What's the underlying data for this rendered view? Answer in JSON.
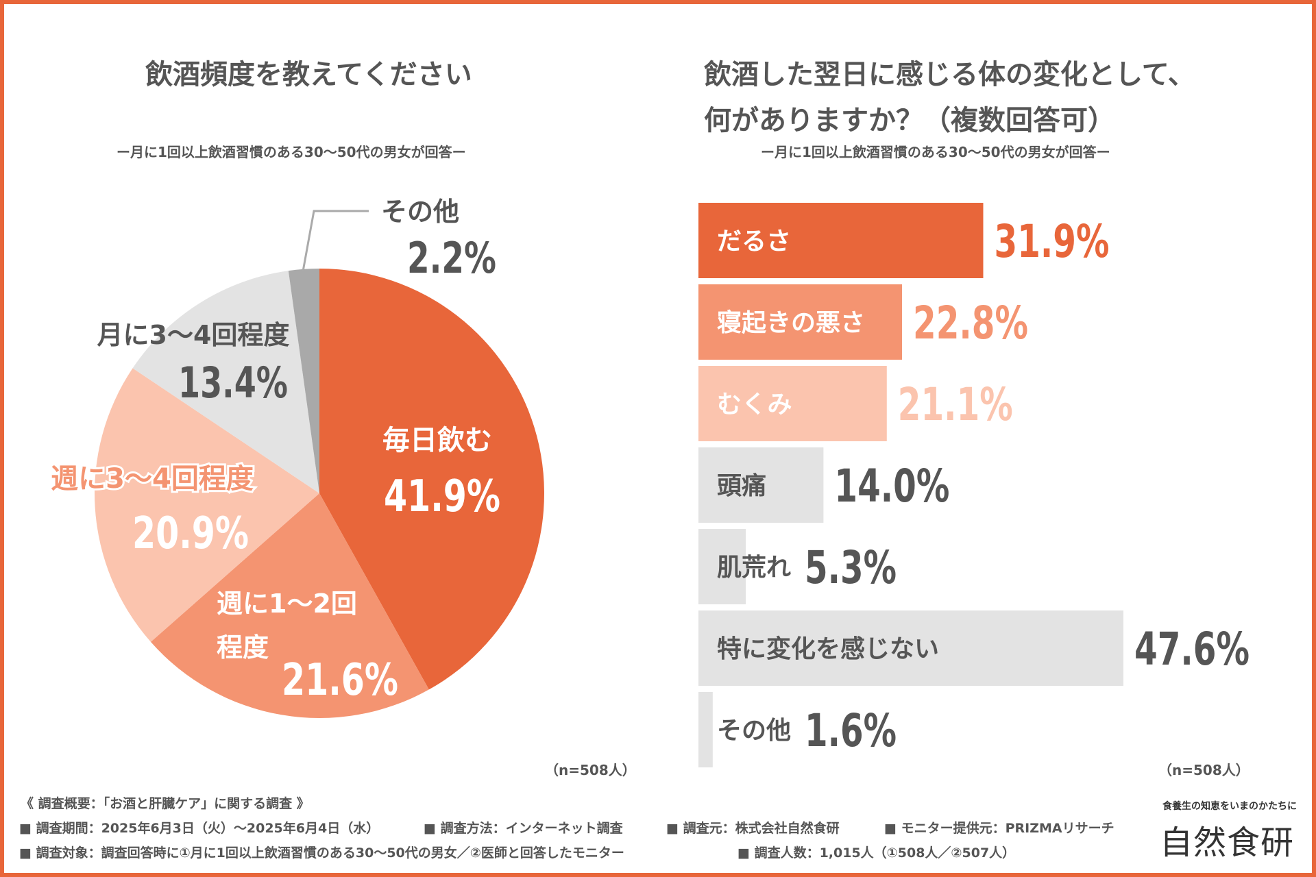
{
  "pie": {
    "title": "飲酒頻度を教えてください",
    "subtitle": "ー月に1回以上飲酒習慣のある30〜50代の男女が回答ー",
    "n_note": "（n=508人）"
  },
  "bar": {
    "title_line1": "飲酒した翌日に感じる体の変化として、",
    "title_line2": "何がありますか？（複数回答可）",
    "subtitle": "ー月に1回以上飲酒習慣のある30〜50代の男女が回答ー",
    "n_note": "（n=508人）"
  },
  "footer": {
    "overview": "《 調査概要：「お酒と肝臓ケア」に関する調査 》",
    "period": "■ 調査期間：2025年6月3日（火）〜2025年6月4日（水）",
    "method": "■ 調査方法：インターネット調査",
    "source": "■ 調査元：株式会社自然食研",
    "monitor": "■ モニター提供元：PRIZMAリサーチ",
    "target": "■ 調査対象：調査回答時に①月に1回以上飲酒習慣のある30〜50代の男女／②医師と回答したモニター",
    "count": "■ 調査人数：1,015人（①508人／②507人）"
  },
  "brand": {
    "tagline": "食養生の知恵をいまのかたちに",
    "name": "自然食研"
  },
  "chart_data": [
    {
      "type": "pie",
      "title": "飲酒頻度を教えてください",
      "slices": [
        {
          "label": "毎日飲む",
          "value": 41.9,
          "text": "41.9%",
          "color": "#e8663a"
        },
        {
          "label": "週に1〜2回程度",
          "label_line1": "週に1〜2回",
          "label_line2": "程度",
          "value": 21.6,
          "text": "21.6%",
          "color": "#f49471"
        },
        {
          "label": "週に3〜4回程度",
          "value": 20.9,
          "text": "20.9%",
          "color": "#fbc4ae"
        },
        {
          "label": "月に3〜4回程度",
          "value": 13.4,
          "text": "13.4%",
          "color": "#e3e3e3"
        },
        {
          "label": "その他",
          "value": 2.2,
          "text": "2.2%",
          "color": "#a9a9a9"
        }
      ]
    },
    {
      "type": "bar",
      "orientation": "horizontal",
      "title": "飲酒した翌日に感じる体の変化として、何がありますか？（複数回答可）",
      "xlim": [
        0,
        60
      ],
      "items": [
        {
          "label": "だるさ",
          "value": 31.9,
          "text": "31.9%",
          "color": "#e8663a",
          "label_color": "#ffffff",
          "value_color": "#e8663a"
        },
        {
          "label": "寝起きの悪さ",
          "value": 22.8,
          "text": "22.8%",
          "color": "#f49471",
          "label_color": "#ffffff",
          "value_color": "#f49471"
        },
        {
          "label": "むくみ",
          "value": 21.1,
          "text": "21.1%",
          "color": "#fbc4ae",
          "label_color": "#ffffff",
          "value_color": "#fbc4ae"
        },
        {
          "label": "頭痛",
          "value": 14.0,
          "text": "14.0%",
          "color": "#e3e3e3",
          "label_color": "#555555",
          "value_color": "#555555"
        },
        {
          "label": "肌荒れ",
          "value": 5.3,
          "text": "5.3%",
          "color": "#e3e3e3",
          "label_color": "#555555",
          "value_color": "#555555"
        },
        {
          "label": "特に変化を感じない",
          "value": 47.6,
          "text": "47.6%",
          "color": "#e3e3e3",
          "label_color": "#555555",
          "value_color": "#555555"
        },
        {
          "label": "その他",
          "value": 1.6,
          "text": "1.6%",
          "color": "#e3e3e3",
          "label_color": "#555555",
          "value_color": "#555555"
        }
      ]
    }
  ]
}
